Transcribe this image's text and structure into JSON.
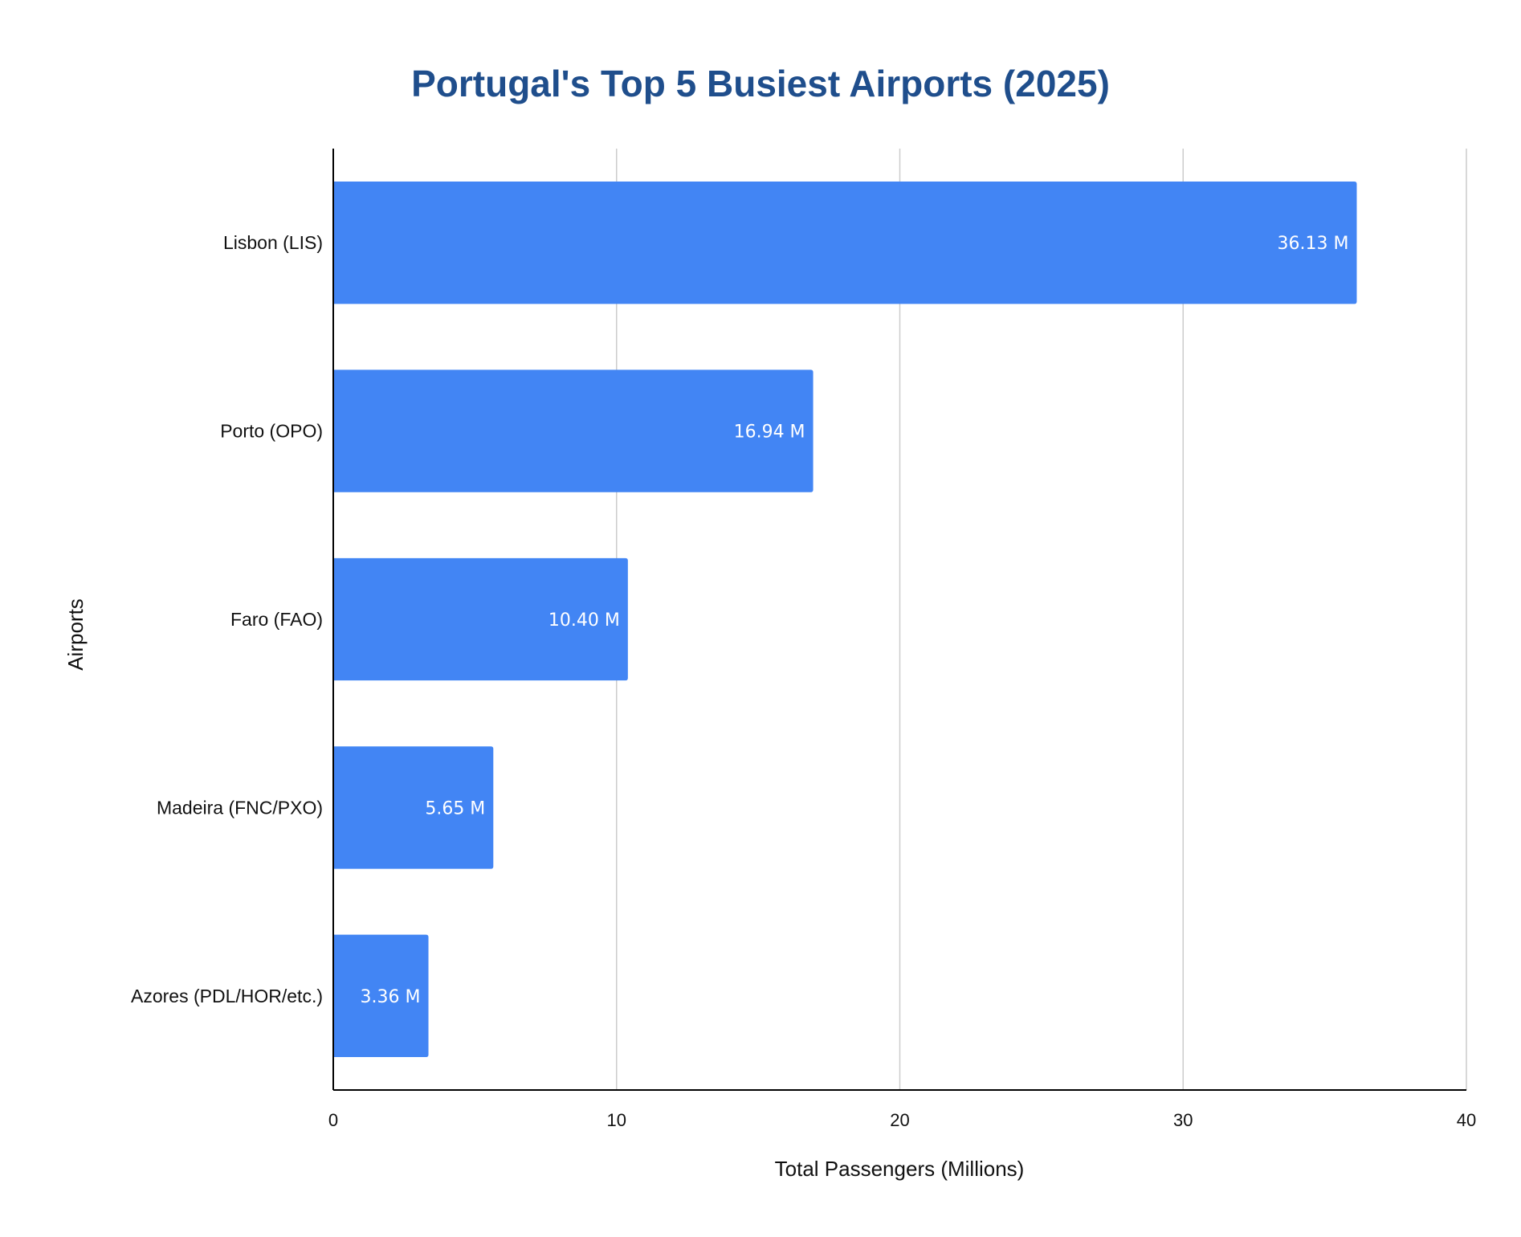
{
  "chart_data": {
    "type": "bar",
    "orientation": "horizontal",
    "title": "Portugal's Top 5 Busiest Airports (2025)",
    "xlabel": "Total Passengers (Millions)",
    "ylabel": "Airports",
    "categories": [
      "Lisbon (LIS)",
      "Porto (OPO)",
      "Faro (FAO)",
      "Madeira (FNC/PXO)",
      "Azores (PDL/HOR/etc.)"
    ],
    "values": [
      36.13,
      16.94,
      10.4,
      5.65,
      3.36
    ],
    "data_labels": [
      "36.13 M",
      "16.94 M",
      "10.40 M",
      "5.65 M",
      "3.36 M"
    ],
    "xlim": [
      0,
      40
    ],
    "xticks": [
      0,
      10,
      20,
      30,
      40
    ],
    "grid": "vertical",
    "legend": "none",
    "colors": {
      "bar": "#4285f4",
      "title": "#1f4e8c",
      "grid": "#cccccc",
      "axis": "#000000"
    }
  }
}
